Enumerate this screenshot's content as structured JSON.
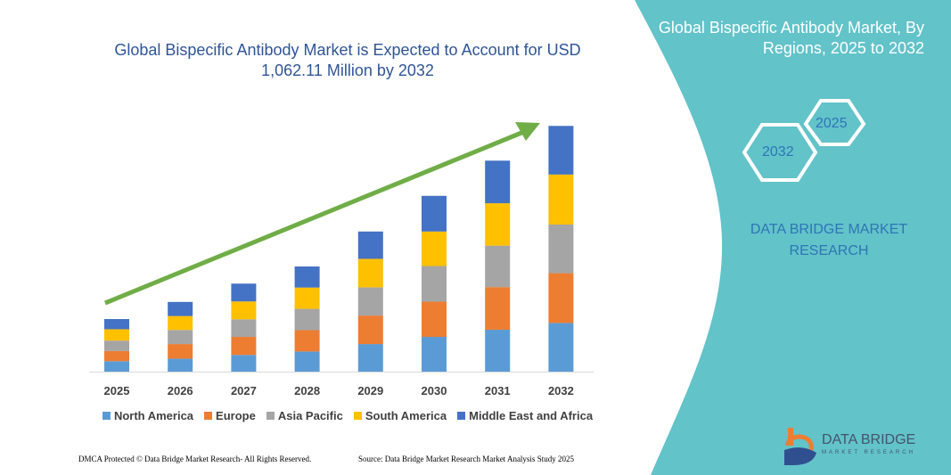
{
  "header": {
    "title": "Global Bispecific Antibody Market is Expected to Account for USD 1,062.11 Million by 2032"
  },
  "side_panel": {
    "title": "Global Bispecific Antibody Market, By Regions, 2025 to 2032",
    "hex_labels": [
      "2025",
      "2032"
    ],
    "brand": "DATA BRIDGE MARKET RESEARCH",
    "logo_text": "DATA BRIDGE",
    "logo_sub": "MARKET RESEARCH",
    "panel_color": "#62c3c9"
  },
  "footer": {
    "left": "DMCA Protected © Data Bridge Market Research- All Rights Reserved.",
    "right": "Source: Data Bridge Market Research Market Analysis Study 2025"
  },
  "chart_data": {
    "type": "bar",
    "stacked": true,
    "title": "Global Bispecific Antibody Market is Expected to Account for USD 1,062.11 Million by 2032",
    "xlabel": "",
    "ylabel": "",
    "categories": [
      "2025",
      "2026",
      "2027",
      "2028",
      "2029",
      "2030",
      "2031",
      "2032"
    ],
    "series": [
      {
        "name": "North America",
        "color": "#5b9bd5",
        "values": [
          45,
          56,
          72,
          87,
          119,
          150,
          181,
          210
        ]
      },
      {
        "name": "Europe",
        "color": "#ed7d31",
        "values": [
          44,
          63,
          78,
          92,
          123,
          152,
          184,
          215
        ]
      },
      {
        "name": "Asia Pacific",
        "color": "#a5a5a5",
        "values": [
          45,
          61,
          76,
          92,
          122,
          154,
          179,
          210
        ]
      },
      {
        "name": "South America",
        "color": "#ffc000",
        "values": [
          49,
          60,
          77,
          92,
          123,
          149,
          183,
          216
        ]
      },
      {
        "name": "Middle East and Africa",
        "color": "#4472c4",
        "values": [
          44,
          61,
          77,
          91,
          118,
          154,
          184,
          210
        ]
      }
    ],
    "ylim": [
      0,
      1062.11
    ],
    "grid": false,
    "legend_position": "bottom",
    "trend_arrow_color": "#70ad47"
  }
}
